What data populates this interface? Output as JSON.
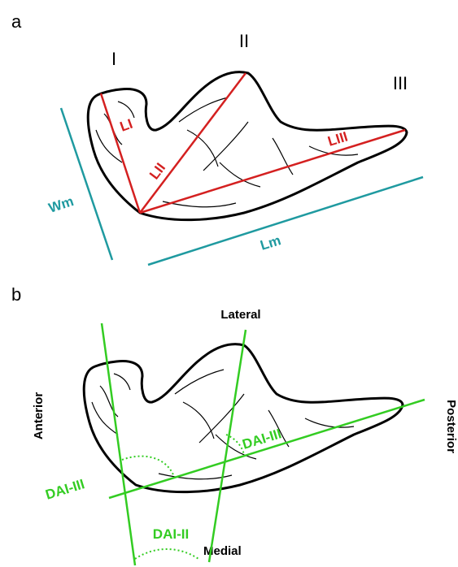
{
  "panel_a": {
    "label": "a",
    "lobes": [
      "I",
      "II",
      "III"
    ],
    "lengths": [
      "LI",
      "LII",
      "LIII"
    ],
    "width": "Wm",
    "length": "Lm"
  },
  "panel_b": {
    "label": "b",
    "lateral": "Lateral",
    "medial": "Medial",
    "anterior": "Anterior",
    "posterior": "Posterior",
    "angles": [
      "DAI-III",
      "DAI-III",
      "DAI-II"
    ]
  }
}
